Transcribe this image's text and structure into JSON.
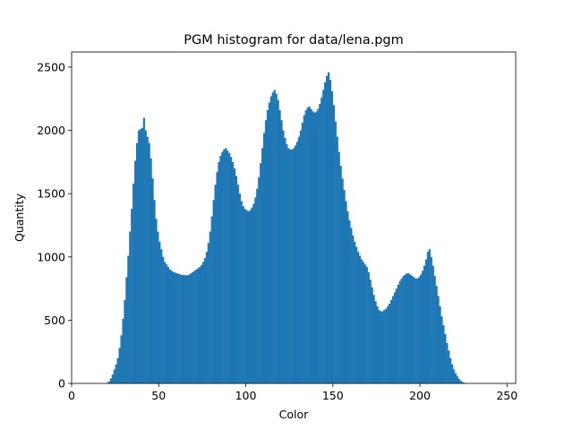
{
  "chart_data": {
    "type": "bar",
    "title": "PGM histogram for data/lena.pgm",
    "xlabel": "Color",
    "ylabel": "Quantity",
    "xlim": [
      0,
      255
    ],
    "ylim": [
      0,
      2620
    ],
    "xticks": [
      0,
      50,
      100,
      150,
      200,
      250
    ],
    "yticks": [
      0,
      500,
      1000,
      1500,
      2000,
      2500
    ],
    "grid": false,
    "bar_color": "#1f77b4",
    "x_start": 0,
    "bin_width": 1,
    "values": [
      0,
      0,
      0,
      0,
      0,
      0,
      0,
      0,
      0,
      0,
      0,
      0,
      0,
      0,
      0,
      0,
      0,
      0,
      0,
      0,
      5,
      15,
      40,
      70,
      110,
      150,
      200,
      280,
      380,
      510,
      660,
      840,
      1010,
      1200,
      1380,
      1580,
      1760,
      1900,
      2000,
      2010,
      2020,
      2100,
      2000,
      1950,
      1900,
      1780,
      1620,
      1450,
      1300,
      1200,
      1120,
      1060,
      1000,
      960,
      940,
      920,
      900,
      890,
      880,
      875,
      870,
      865,
      860,
      858,
      856,
      855,
      855,
      860,
      870,
      880,
      890,
      900,
      910,
      920,
      935,
      960,
      990,
      1040,
      1110,
      1200,
      1320,
      1450,
      1570,
      1670,
      1750,
      1800,
      1830,
      1850,
      1860,
      1840,
      1820,
      1790,
      1750,
      1700,
      1640,
      1570,
      1500,
      1440,
      1400,
      1380,
      1370,
      1360,
      1370,
      1390,
      1420,
      1470,
      1540,
      1630,
      1740,
      1860,
      1980,
      2080,
      2160,
      2220,
      2270,
      2300,
      2320,
      2290,
      2240,
      2160,
      2080,
      2000,
      1940,
      1890,
      1860,
      1850,
      1850,
      1860,
      1880,
      1910,
      1950,
      2000,
      2060,
      2120,
      2160,
      2180,
      2190,
      2170,
      2150,
      2140,
      2150,
      2170,
      2210,
      2260,
      2320,
      2380,
      2430,
      2460,
      2400,
      2310,
      2200,
      2070,
      1950,
      1830,
      1720,
      1620,
      1530,
      1440,
      1360,
      1290,
      1230,
      1170,
      1120,
      1080,
      1040,
      1010,
      980,
      960,
      940,
      920,
      880,
      820,
      760,
      700,
      650,
      610,
      580,
      570,
      570,
      580,
      590,
      610,
      630,
      660,
      690,
      720,
      750,
      780,
      810,
      830,
      850,
      860,
      870,
      870,
      860,
      850,
      840,
      830,
      830,
      840,
      860,
      890,
      930,
      980,
      1040,
      1060,
      1000,
      930,
      850,
      770,
      690,
      610,
      530,
      460,
      390,
      320,
      260,
      200,
      150,
      110,
      80,
      55,
      35,
      20,
      10,
      5,
      2,
      1,
      0,
      0,
      0,
      0,
      0,
      0,
      0,
      0,
      0,
      0,
      0,
      0,
      0,
      0,
      0,
      0,
      0,
      0,
      0,
      0,
      0,
      0,
      0,
      0,
      0,
      0,
      0,
      0
    ]
  }
}
